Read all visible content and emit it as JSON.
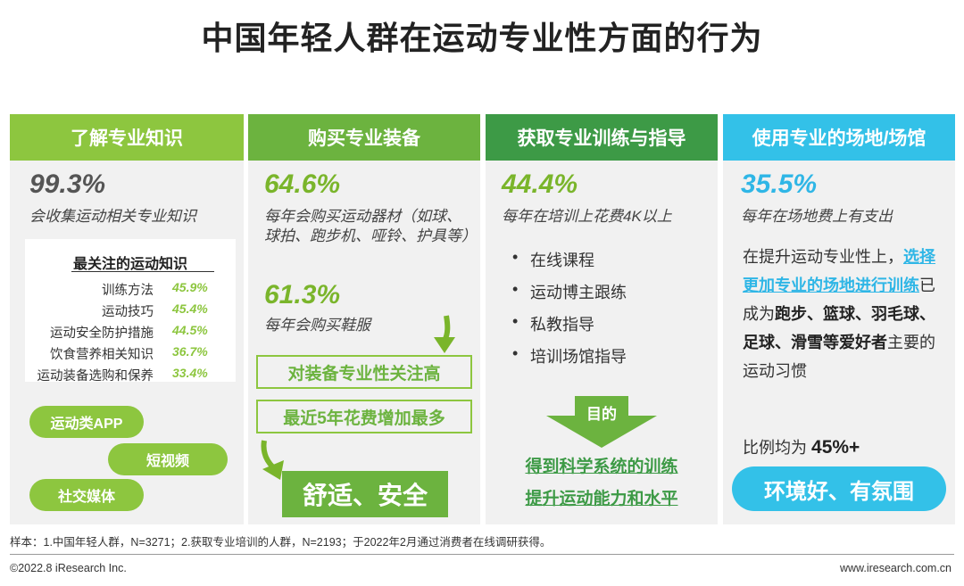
{
  "title": "中国年轻人群在运动专业性方面的行为",
  "colors": {
    "col1": "#8dc63f",
    "col2": "#6cb33f",
    "col3": "#3d9a46",
    "col4": "#33c1e8"
  },
  "columns": [
    {
      "header": "了解专业知识",
      "stat": "99.3%",
      "stat_desc": "会收集运动相关专业知识",
      "knowledge_title": "最关注的运动知识",
      "knowledge": [
        {
          "label": "训练方法",
          "value": "45.9%"
        },
        {
          "label": "运动技巧",
          "value": "45.4%"
        },
        {
          "label": "运动安全防护措施",
          "value": "44.5%"
        },
        {
          "label": "饮食营养相关知识",
          "value": "36.7%"
        },
        {
          "label": "运动装备选购和保养",
          "value": "33.4%"
        }
      ],
      "channels": [
        "运动类APP",
        "短视频",
        "社交媒体"
      ]
    },
    {
      "header": "购买专业装备",
      "stat1": "64.6%",
      "stat1_desc": "每年会购买运动器材（如球、球拍、跑步机、哑铃、护具等）",
      "stat2": "61.3%",
      "stat2_desc": "每年会购买鞋服",
      "box1": "对装备专业性关注高",
      "box2": "最近5年花费增加最多",
      "result": "舒适、安全"
    },
    {
      "header": "获取专业训练与指导",
      "stat": "44.4%",
      "stat_desc": "每年在培训上花费4K以上",
      "items": [
        "在线课程",
        "运动博主跟练",
        "私教指导",
        "培训场馆指导"
      ],
      "arrow_label": "目的",
      "result1": "得到科学系统的训练",
      "result2": "提升运动能力和水平"
    },
    {
      "header": "使用专业的场地/场馆",
      "stat": "35.5%",
      "stat_desc": "每年在场地费上有支出",
      "para_a": "在提升运动专业性上，",
      "para_hl": "选择更加专业的场地进行训练",
      "para_b": "已成为",
      "para_sports": "跑步、篮球、羽毛球、足球、滑雪等爱好者",
      "para_c": "主要的运动习惯",
      "ratio_label": "比例均为",
      "ratio_value": "45%+",
      "result": "环境好、有氛围"
    }
  ],
  "sample_note": "样本：1.中国年轻人群，N=3271；2.获取专业培训的人群，N=2193；于2022年2月通过消费者在线调研获得。",
  "copyright": "©2022.8 iResearch Inc.",
  "website": "www.iresearch.com.cn"
}
